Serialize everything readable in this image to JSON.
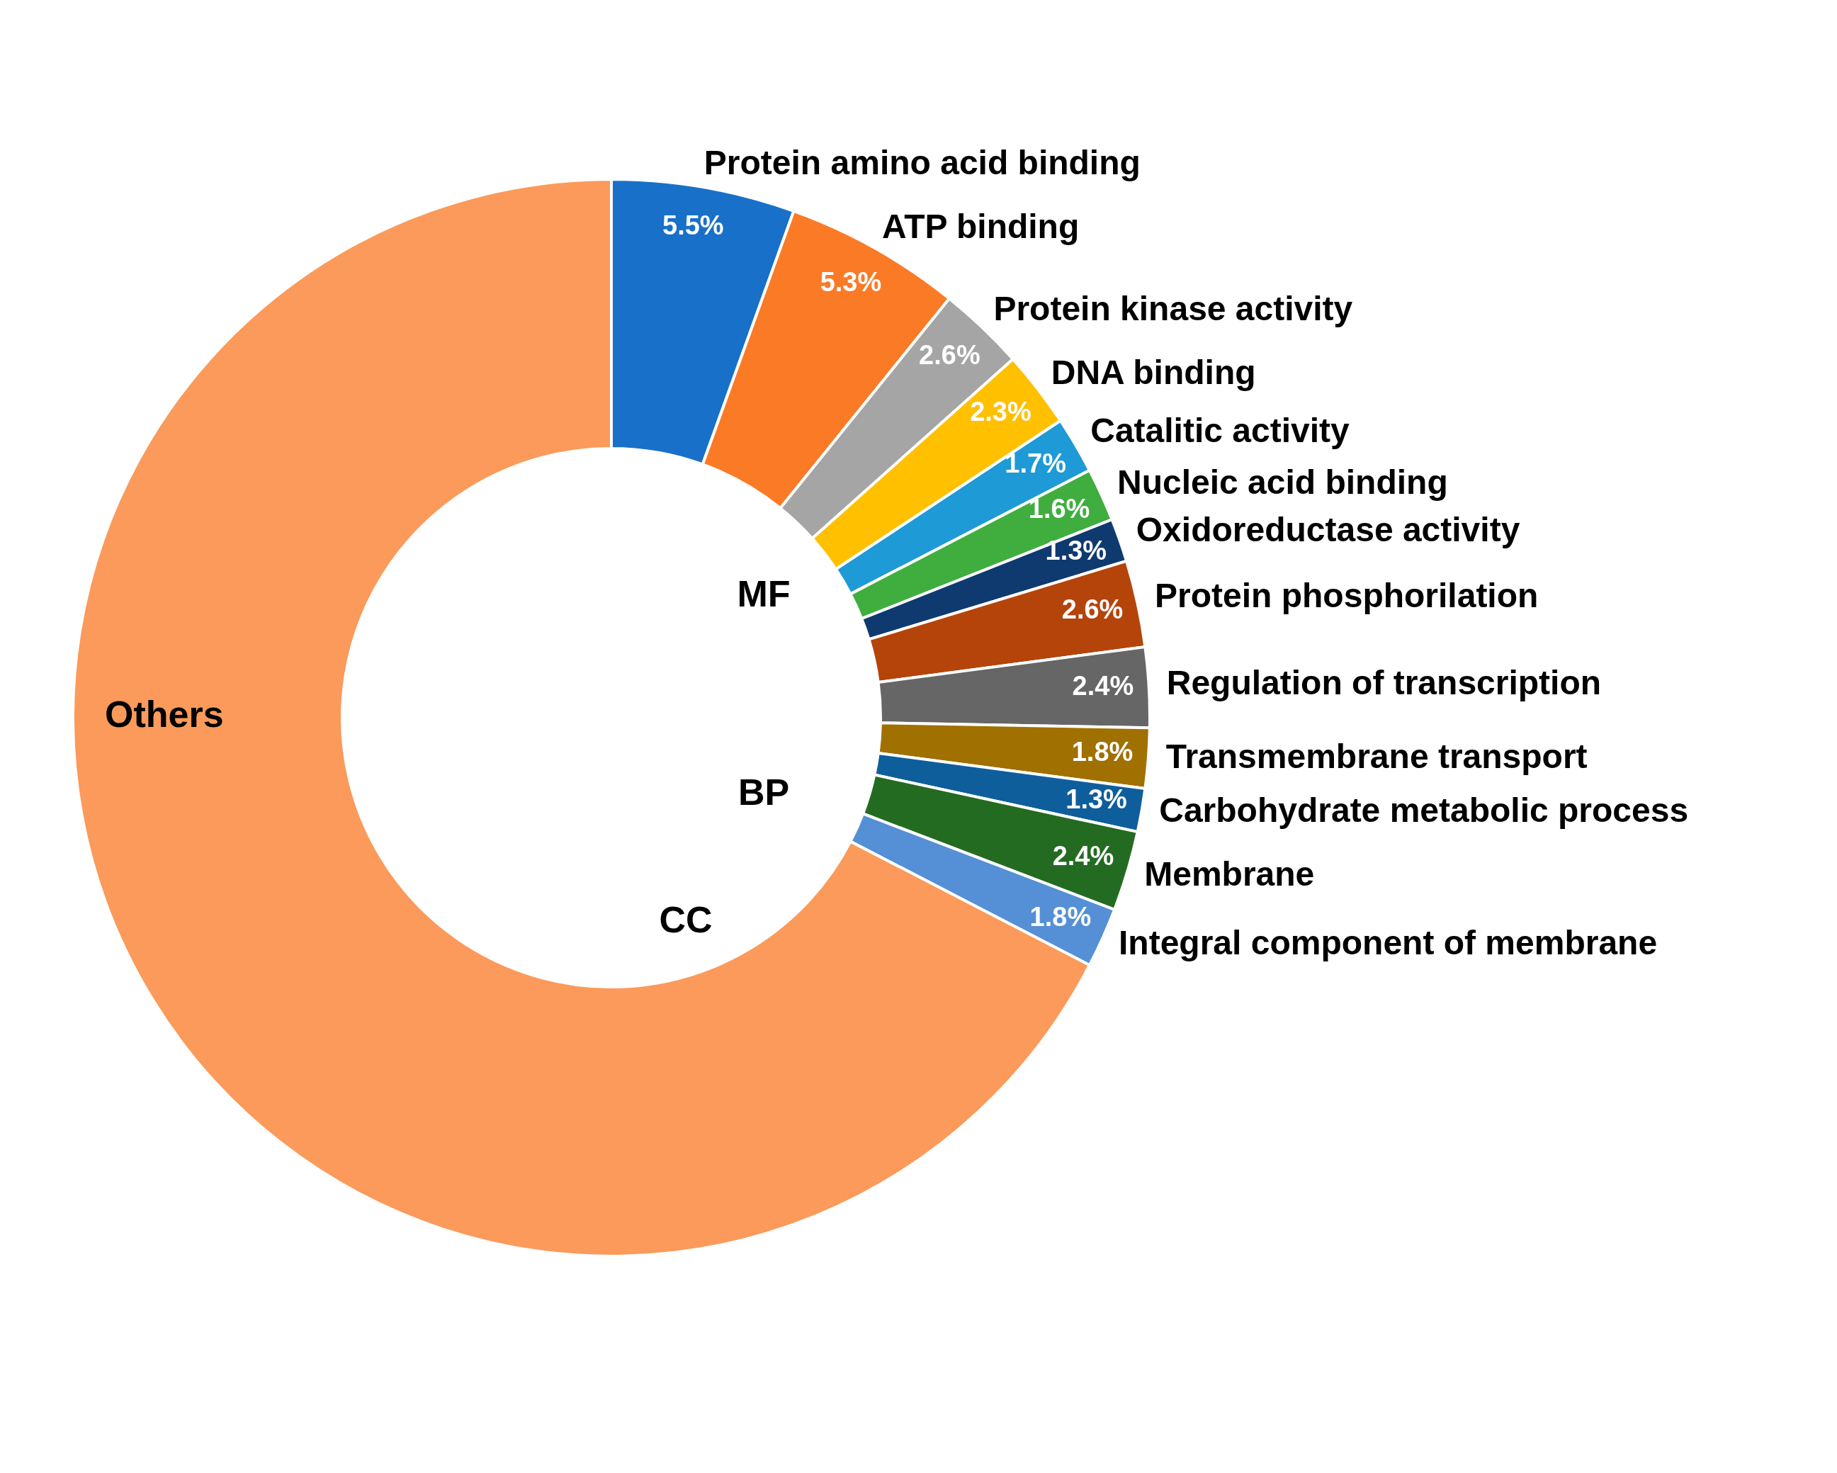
{
  "chart_data": {
    "type": "donut",
    "categories": [
      "Protein amino acid binding",
      "ATP binding",
      "Protein kinase activity",
      "DNA binding",
      "Catalitic activity",
      "Nucleic acid binding",
      "Oxidoreductase activity",
      "Protein phosphorilation",
      "Regulation of transcription",
      "Transmembrane transport",
      "Carbohydrate metabolic process",
      "Membrane",
      "Integral component of membrane",
      "Others"
    ],
    "values": [
      5.5,
      5.3,
      2.6,
      2.3,
      1.7,
      1.6,
      1.3,
      2.6,
      2.4,
      1.8,
      1.3,
      2.4,
      1.8,
      67.4
    ],
    "value_labels": [
      "5.5%",
      "5.3%",
      "2.6%",
      "2.3%",
      "1.7%",
      "1.6%",
      "1.3%",
      "2.6%",
      "2.4%",
      "1.8%",
      "1.3%",
      "2.4%",
      "1.8%",
      null
    ],
    "colors": [
      "#1870c8",
      "#fb7a26",
      "#a5a5a5",
      "#ffc000",
      "#1e9ad6",
      "#3fae3f",
      "#0f3a70",
      "#b5440a",
      "#666666",
      "#a07000",
      "#0f5e9c",
      "#246b22",
      "#5590d6",
      "#fb9a5a"
    ],
    "annotations": [
      "MF",
      "BP",
      "CC"
    ],
    "legend": false
  }
}
